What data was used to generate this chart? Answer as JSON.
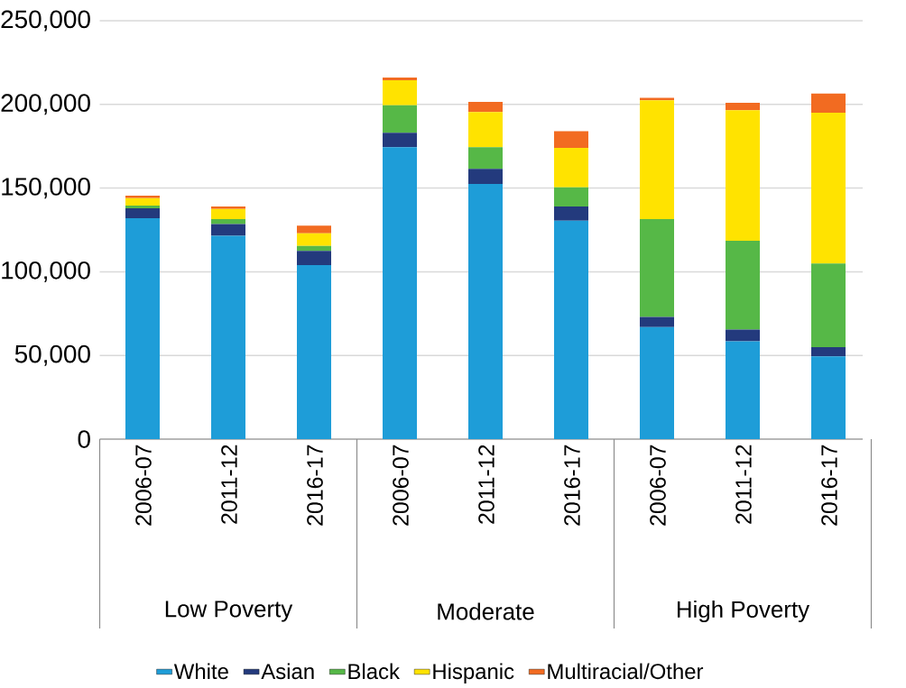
{
  "chart_data": {
    "type": "bar",
    "stacked": true,
    "categories": [
      "2006-07",
      "2011-12",
      "2016-17",
      "2006-07",
      "2011-12",
      "2016-17",
      "2006-07",
      "2011-12",
      "2016-17"
    ],
    "series": [
      {
        "name": "White",
        "color": "#1e9dd8",
        "values": [
          132000,
          121500,
          104000,
          174500,
          152500,
          130500,
          67000,
          58500,
          49500
        ]
      },
      {
        "name": "Asian",
        "color": "#233a7d",
        "values": [
          6000,
          7000,
          8500,
          8500,
          9000,
          8500,
          6000,
          7000,
          5500
        ]
      },
      {
        "name": "Black",
        "color": "#56b847",
        "values": [
          1500,
          3000,
          3000,
          16500,
          13000,
          11500,
          58500,
          53000,
          50000
        ]
      },
      {
        "name": "Hispanic",
        "color": "#ffe300",
        "values": [
          4500,
          6000,
          7500,
          15000,
          21000,
          23500,
          71000,
          78000,
          90000
        ]
      },
      {
        "name": "Multiracial/Other",
        "color": "#f26b21",
        "values": [
          1500,
          1500,
          4500,
          1500,
          6000,
          10000,
          1500,
          4500,
          11500
        ]
      }
    ],
    "ylim": [
      0,
      250000
    ],
    "yticks": [
      0,
      {
        "value": 50000,
        "label": "50,000"
      },
      {
        "value": 100000,
        "label": "100,000"
      },
      {
        "value": 150000,
        "label": "150,000"
      },
      {
        "value": 200000,
        "label": "200,000"
      },
      {
        "value": 250000,
        "label": "250,000"
      }
    ],
    "grid": "y",
    "legend": "bottom",
    "annotations": [
      "Low Poverty",
      "Moderate",
      "High Poverty"
    ]
  }
}
